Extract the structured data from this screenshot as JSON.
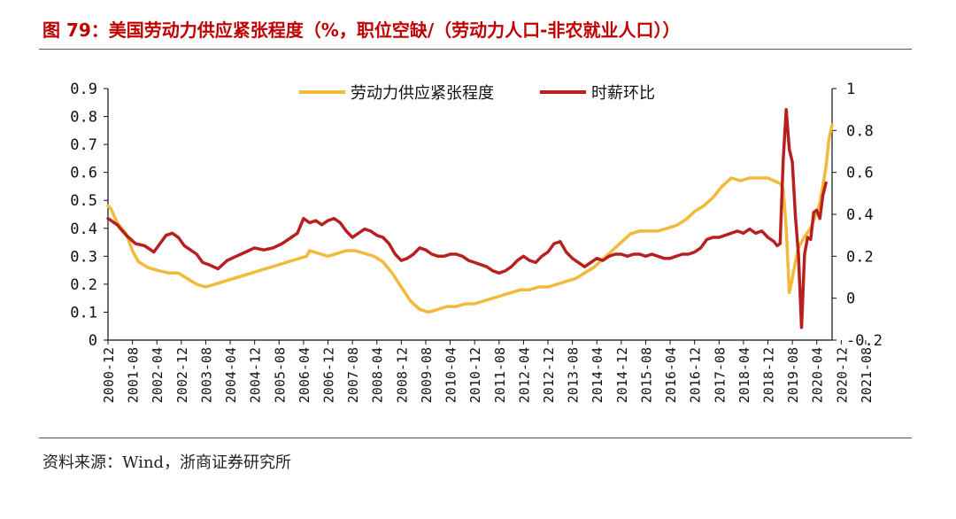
{
  "title": "图 79：美国劳动力供应紧张程度（%，职位空缺/（劳动力人口-非农就业人口））",
  "source": "资料来源：Wind，浙商证券研究所",
  "chart_data": {
    "type": "line",
    "title": "美国劳动力供应紧张程度（%，职位空缺/（劳动力人口-非农就业人口））",
    "x_tick_labels": [
      "2000-12",
      "2001-08",
      "2002-04",
      "2002-12",
      "2003-08",
      "2004-04",
      "2004-12",
      "2005-08",
      "2006-04",
      "2006-12",
      "2007-08",
      "2008-04",
      "2008-12",
      "2009-08",
      "2010-04",
      "2010-12",
      "2011-08",
      "2012-04",
      "2012-12",
      "2013-08",
      "2014-04",
      "2014-12",
      "2015-08",
      "2016-04",
      "2016-12",
      "2017-08",
      "2018-04",
      "2018-12",
      "2019-08",
      "2020-04",
      "2020-12",
      "2021-08"
    ],
    "y_left": {
      "min": 0,
      "max": 0.9,
      "ticks": [
        "0",
        "0.1",
        "0.2",
        "0.3",
        "0.4",
        "0.5",
        "0.6",
        "0.7",
        "0.8",
        "0.9"
      ]
    },
    "y_right": {
      "min": -0.2,
      "max": 1.0,
      "ticks": [
        "-0.2",
        "0",
        "0.2",
        "0.4",
        "0.6",
        "0.8",
        "1"
      ]
    },
    "series": [
      {
        "name": "劳动力供应紧张程度",
        "axis": "left",
        "color": "#f2b93b",
        "points": [
          [
            0,
            0.48
          ],
          [
            1,
            0.47
          ],
          [
            3,
            0.42
          ],
          [
            6,
            0.38
          ],
          [
            8,
            0.32
          ],
          [
            10,
            0.28
          ],
          [
            13,
            0.26
          ],
          [
            16,
            0.25
          ],
          [
            20,
            0.24
          ],
          [
            23,
            0.24
          ],
          [
            26,
            0.22
          ],
          [
            29,
            0.2
          ],
          [
            32,
            0.19
          ],
          [
            35,
            0.2
          ],
          [
            38,
            0.21
          ],
          [
            41,
            0.22
          ],
          [
            44,
            0.23
          ],
          [
            47,
            0.24
          ],
          [
            50,
            0.25
          ],
          [
            53,
            0.26
          ],
          [
            56,
            0.27
          ],
          [
            59,
            0.28
          ],
          [
            62,
            0.29
          ],
          [
            65,
            0.3
          ],
          [
            66,
            0.32
          ],
          [
            69,
            0.31
          ],
          [
            72,
            0.3
          ],
          [
            75,
            0.31
          ],
          [
            78,
            0.32
          ],
          [
            81,
            0.32
          ],
          [
            84,
            0.31
          ],
          [
            87,
            0.3
          ],
          [
            90,
            0.28
          ],
          [
            93,
            0.24
          ],
          [
            96,
            0.19
          ],
          [
            99,
            0.14
          ],
          [
            102,
            0.11
          ],
          [
            105,
            0.1
          ],
          [
            108,
            0.11
          ],
          [
            111,
            0.12
          ],
          [
            114,
            0.12
          ],
          [
            117,
            0.13
          ],
          [
            120,
            0.13
          ],
          [
            123,
            0.14
          ],
          [
            126,
            0.15
          ],
          [
            129,
            0.16
          ],
          [
            132,
            0.17
          ],
          [
            135,
            0.18
          ],
          [
            138,
            0.18
          ],
          [
            141,
            0.19
          ],
          [
            144,
            0.19
          ],
          [
            147,
            0.2
          ],
          [
            150,
            0.21
          ],
          [
            153,
            0.22
          ],
          [
            156,
            0.24
          ],
          [
            159,
            0.26
          ],
          [
            162,
            0.29
          ],
          [
            165,
            0.32
          ],
          [
            168,
            0.35
          ],
          [
            171,
            0.38
          ],
          [
            174,
            0.39
          ],
          [
            177,
            0.39
          ],
          [
            180,
            0.39
          ],
          [
            183,
            0.4
          ],
          [
            186,
            0.41
          ],
          [
            189,
            0.43
          ],
          [
            192,
            0.46
          ],
          [
            195,
            0.48
          ],
          [
            198,
            0.51
          ],
          [
            201,
            0.55
          ],
          [
            204,
            0.58
          ],
          [
            207,
            0.57
          ],
          [
            210,
            0.58
          ],
          [
            213,
            0.58
          ],
          [
            216,
            0.58
          ],
          [
            218,
            0.57
          ],
          [
            220,
            0.56
          ],
          [
            221,
            0.54
          ],
          [
            222,
            0.4
          ],
          [
            223,
            0.17
          ],
          [
            224,
            0.22
          ],
          [
            225,
            0.28
          ],
          [
            226,
            0.33
          ],
          [
            228,
            0.37
          ],
          [
            230,
            0.4
          ],
          [
            233,
            0.49
          ],
          [
            235,
            0.62
          ],
          [
            236,
            0.72
          ],
          [
            237,
            0.77
          ]
        ]
      },
      {
        "name": "时薪环比",
        "axis": "right",
        "color": "#b8201f",
        "points": [
          [
            0,
            0.38
          ],
          [
            3,
            0.35
          ],
          [
            6,
            0.3
          ],
          [
            9,
            0.26
          ],
          [
            12,
            0.25
          ],
          [
            15,
            0.22
          ],
          [
            17,
            0.26
          ],
          [
            19,
            0.3
          ],
          [
            21,
            0.31
          ],
          [
            23,
            0.29
          ],
          [
            25,
            0.25
          ],
          [
            27,
            0.23
          ],
          [
            29,
            0.21
          ],
          [
            31,
            0.17
          ],
          [
            33,
            0.16
          ],
          [
            36,
            0.14
          ],
          [
            39,
            0.18
          ],
          [
            42,
            0.2
          ],
          [
            45,
            0.22
          ],
          [
            48,
            0.24
          ],
          [
            51,
            0.23
          ],
          [
            54,
            0.24
          ],
          [
            57,
            0.26
          ],
          [
            60,
            0.29
          ],
          [
            62,
            0.31
          ],
          [
            64,
            0.38
          ],
          [
            66,
            0.36
          ],
          [
            68,
            0.37
          ],
          [
            70,
            0.35
          ],
          [
            72,
            0.37
          ],
          [
            74,
            0.38
          ],
          [
            76,
            0.36
          ],
          [
            78,
            0.32
          ],
          [
            80,
            0.29
          ],
          [
            82,
            0.31
          ],
          [
            84,
            0.33
          ],
          [
            86,
            0.32
          ],
          [
            88,
            0.3
          ],
          [
            90,
            0.29
          ],
          [
            92,
            0.26
          ],
          [
            94,
            0.21
          ],
          [
            96,
            0.18
          ],
          [
            98,
            0.19
          ],
          [
            100,
            0.21
          ],
          [
            102,
            0.24
          ],
          [
            104,
            0.23
          ],
          [
            106,
            0.21
          ],
          [
            108,
            0.2
          ],
          [
            110,
            0.2
          ],
          [
            112,
            0.21
          ],
          [
            114,
            0.21
          ],
          [
            116,
            0.2
          ],
          [
            118,
            0.18
          ],
          [
            120,
            0.17
          ],
          [
            122,
            0.16
          ],
          [
            124,
            0.15
          ],
          [
            126,
            0.13
          ],
          [
            128,
            0.12
          ],
          [
            130,
            0.13
          ],
          [
            132,
            0.15
          ],
          [
            134,
            0.18
          ],
          [
            136,
            0.2
          ],
          [
            138,
            0.18
          ],
          [
            140,
            0.17
          ],
          [
            142,
            0.2
          ],
          [
            144,
            0.22
          ],
          [
            146,
            0.26
          ],
          [
            148,
            0.27
          ],
          [
            150,
            0.22
          ],
          [
            152,
            0.19
          ],
          [
            154,
            0.17
          ],
          [
            156,
            0.15
          ],
          [
            158,
            0.17
          ],
          [
            160,
            0.19
          ],
          [
            162,
            0.18
          ],
          [
            164,
            0.2
          ],
          [
            166,
            0.21
          ],
          [
            168,
            0.21
          ],
          [
            170,
            0.2
          ],
          [
            172,
            0.21
          ],
          [
            174,
            0.21
          ],
          [
            176,
            0.2
          ],
          [
            178,
            0.21
          ],
          [
            180,
            0.2
          ],
          [
            182,
            0.19
          ],
          [
            184,
            0.19
          ],
          [
            186,
            0.2
          ],
          [
            188,
            0.21
          ],
          [
            190,
            0.21
          ],
          [
            192,
            0.22
          ],
          [
            194,
            0.24
          ],
          [
            196,
            0.28
          ],
          [
            198,
            0.29
          ],
          [
            200,
            0.29
          ],
          [
            202,
            0.3
          ],
          [
            204,
            0.31
          ],
          [
            206,
            0.32
          ],
          [
            208,
            0.31
          ],
          [
            210,
            0.33
          ],
          [
            212,
            0.31
          ],
          [
            214,
            0.32
          ],
          [
            216,
            0.29
          ],
          [
            218,
            0.27
          ],
          [
            219,
            0.25
          ],
          [
            220,
            0.26
          ],
          [
            221,
            0.66
          ],
          [
            222,
            0.9
          ],
          [
            223,
            0.71
          ],
          [
            224,
            0.65
          ],
          [
            225,
            0.39
          ],
          [
            226,
            0.21
          ],
          [
            227,
            -0.14
          ],
          [
            228,
            0.21
          ],
          [
            229,
            0.29
          ],
          [
            230,
            0.28
          ],
          [
            231,
            0.41
          ],
          [
            232,
            0.42
          ],
          [
            233,
            0.38
          ],
          [
            234,
            0.49
          ],
          [
            235,
            0.55
          ]
        ]
      }
    ]
  }
}
